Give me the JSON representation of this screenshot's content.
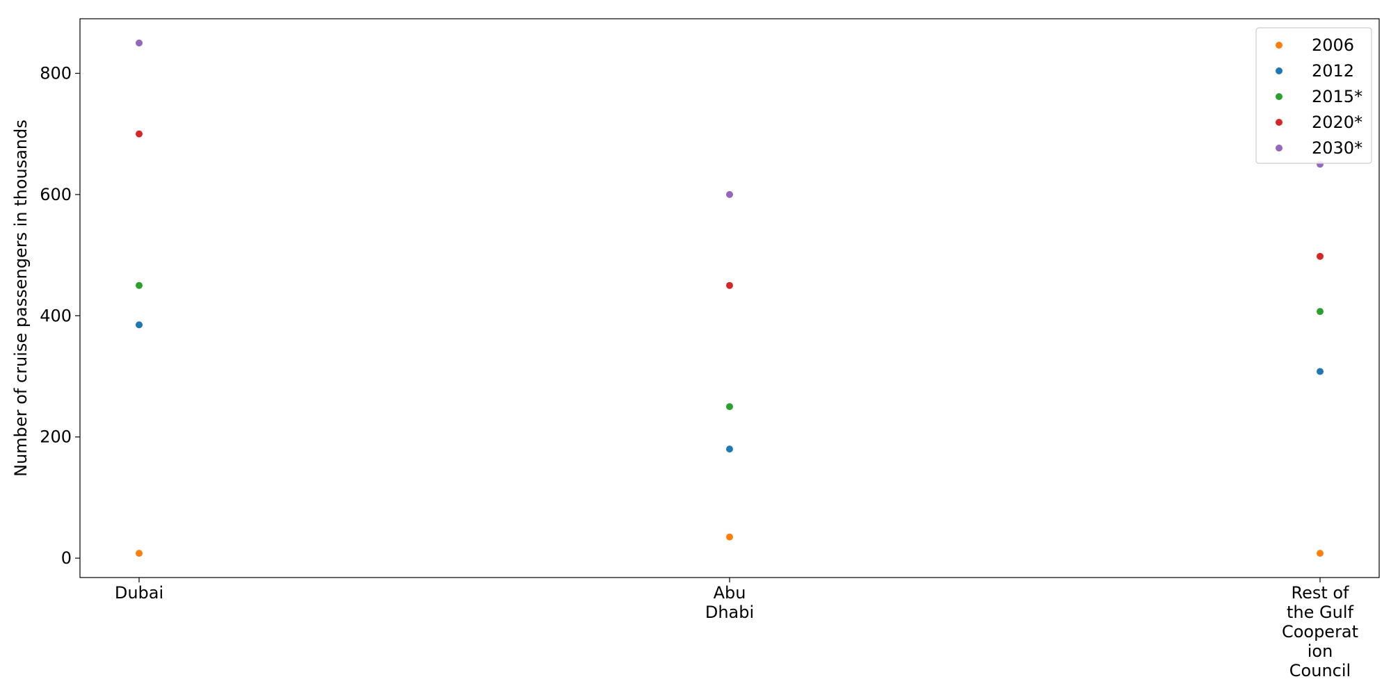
{
  "chart_data": {
    "type": "scatter",
    "title": "",
    "xlabel": "",
    "ylabel": "Number of cruise passengers in thousands",
    "categories": [
      [
        "Dubai"
      ],
      [
        "Abu",
        "Dhabi"
      ],
      [
        "Rest of",
        "the Gulf",
        "Cooperat",
        "ion",
        "Council"
      ]
    ],
    "ylim": [
      -32,
      890
    ],
    "yticks": [
      0,
      200,
      400,
      600,
      800
    ],
    "grid": false,
    "legend_position": "top-right",
    "series": [
      {
        "name": "2006",
        "color": "#ff7f0e",
        "values": [
          8,
          35,
          8
        ]
      },
      {
        "name": "2012",
        "color": "#1f77b4",
        "values": [
          385,
          180,
          308
        ]
      },
      {
        "name": "2015*",
        "color": "#2ca02c",
        "values": [
          450,
          250,
          407
        ]
      },
      {
        "name": "2020*",
        "color": "#d62728",
        "values": [
          700,
          450,
          498
        ]
      },
      {
        "name": "2030*",
        "color": "#9467bd",
        "values": [
          850,
          600,
          650
        ]
      }
    ]
  }
}
